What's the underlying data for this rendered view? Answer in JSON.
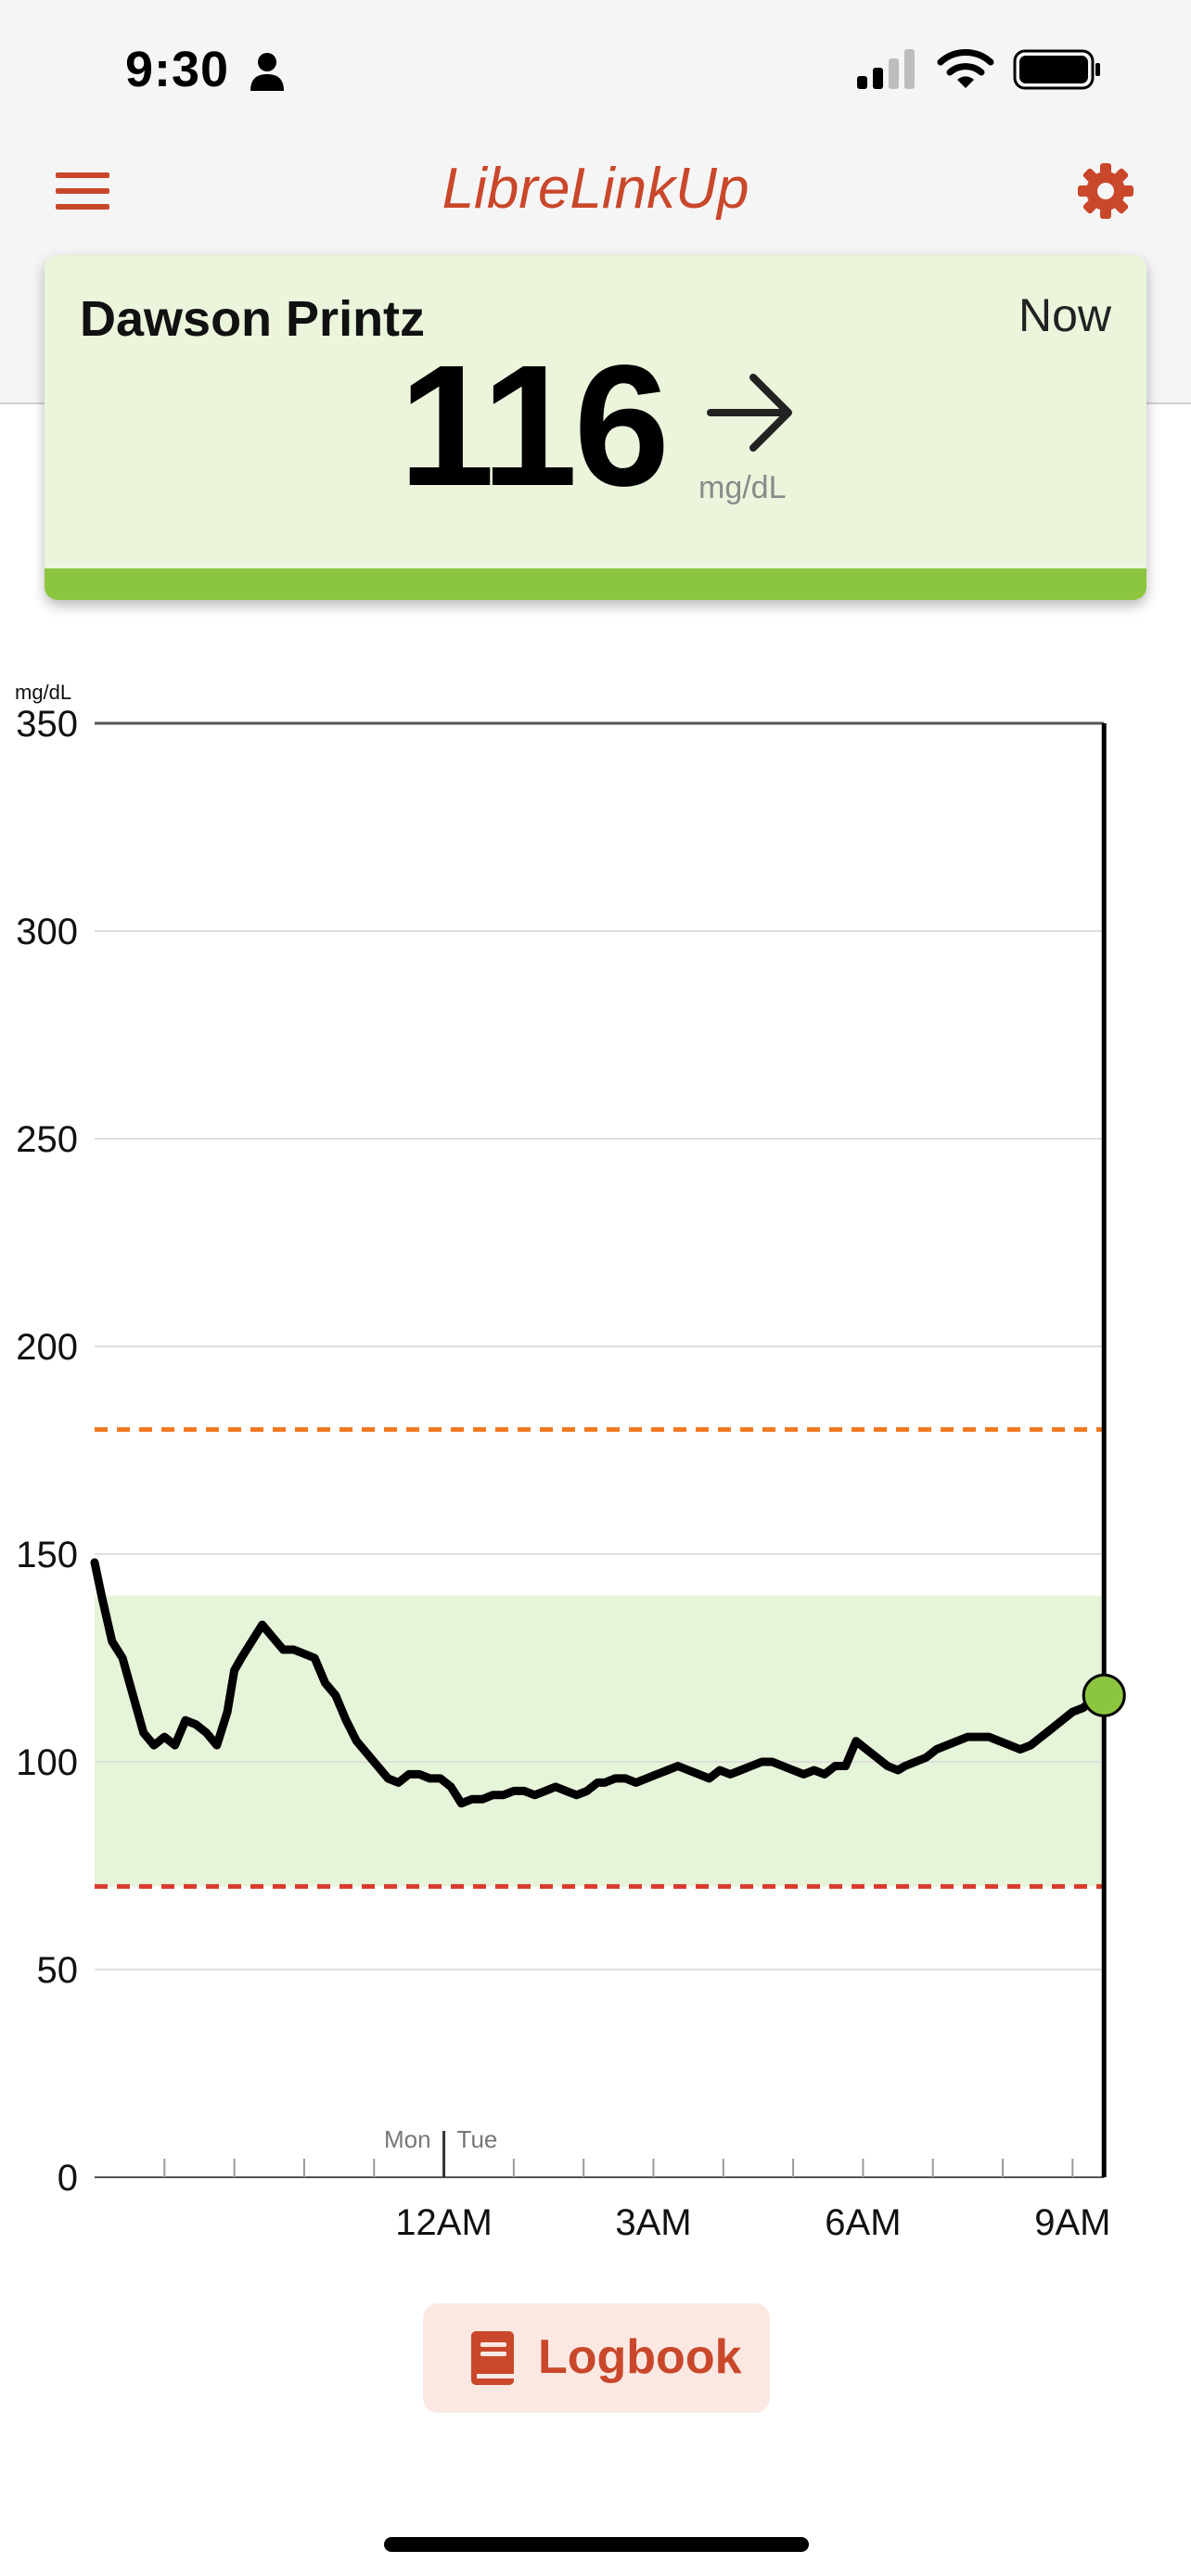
{
  "status_bar": {
    "time": "9:30",
    "icons": [
      "person-icon",
      "cellular-signal-icon",
      "wifi-icon",
      "battery-icon"
    ]
  },
  "nav": {
    "title": "LibreLinkUp",
    "left_icon": "hamburger-menu-icon",
    "right_icon": "gear-icon"
  },
  "reading_card": {
    "patient_name": "Dawson Printz",
    "time_label": "Now",
    "value": "116",
    "unit": "mg/dL",
    "trend_icon": "arrow-right-icon",
    "status_color": "#8cc63f",
    "background_color": "#eaf5dc"
  },
  "chart_data": {
    "type": "line",
    "ylabel": "mg/dL",
    "ylim": [
      0,
      350
    ],
    "yticks": [
      0,
      50,
      100,
      150,
      200,
      250,
      300,
      350
    ],
    "xlim_hours": [
      -5,
      9.5
    ],
    "xticks": [
      {
        "hour": 0,
        "label": "12AM"
      },
      {
        "hour": 3,
        "label": "3AM"
      },
      {
        "hour": 6,
        "label": "6AM"
      },
      {
        "hour": 9,
        "label": "9AM"
      }
    ],
    "minor_tick_hours": [
      -4,
      -3,
      -2,
      -1,
      0,
      1,
      2,
      3,
      4,
      5,
      6,
      7,
      8,
      9
    ],
    "day_divider": {
      "hour": 0,
      "left_label": "Mon",
      "right_label": "Tue"
    },
    "target_range": {
      "low": 70,
      "high": 140,
      "color": "#e6f4d9"
    },
    "high_alarm": {
      "value": 180,
      "color": "#f07820"
    },
    "low_alarm": {
      "value": 70,
      "color": "#d93a2b"
    },
    "grid": true,
    "current_reading": {
      "hour": 9.45,
      "value": 116,
      "marker_color": "#8cc63f"
    },
    "series": [
      {
        "x": [
          -5.0,
          -4.9,
          -4.75,
          -4.6,
          -4.45,
          -4.3,
          -4.15,
          -4.0,
          -3.85,
          -3.7,
          -3.55,
          -3.4,
          -3.25,
          -3.1,
          -3.0,
          -2.9,
          -2.75,
          -2.6,
          -2.45,
          -2.3,
          -2.15,
          -2.0,
          -1.85,
          -1.7,
          -1.55,
          -1.4,
          -1.25,
          -1.1,
          -0.95,
          -0.8,
          -0.65,
          -0.5,
          -0.35,
          -0.2,
          -0.05,
          0.1,
          0.25,
          0.4,
          0.55,
          0.7,
          0.85,
          1.0,
          1.15,
          1.3,
          1.45,
          1.6,
          1.75,
          1.9,
          2.05,
          2.2,
          2.3,
          2.45,
          2.6,
          2.75,
          2.9,
          3.05,
          3.2,
          3.35,
          3.5,
          3.65,
          3.8,
          3.95,
          4.1,
          4.25,
          4.4,
          4.55,
          4.7,
          4.85,
          5.0,
          5.15,
          5.3,
          5.45,
          5.6,
          5.75,
          5.9,
          6.05,
          6.2,
          6.35,
          6.5,
          6.6,
          6.75,
          6.9,
          7.05,
          7.2,
          7.35,
          7.5,
          7.65,
          7.8,
          7.95,
          8.1,
          8.25,
          8.4,
          8.55,
          8.7,
          8.85,
          9.0,
          9.15,
          9.3,
          9.45
        ],
        "values": [
          148,
          140,
          129,
          125,
          116,
          107,
          104,
          106,
          104,
          110,
          109,
          107,
          104,
          112,
          122,
          125,
          129,
          133,
          130,
          127,
          127,
          126,
          125,
          119,
          116,
          110,
          105,
          102,
          99,
          96,
          95,
          97,
          97,
          96,
          96,
          94,
          90,
          91,
          91,
          92,
          92,
          93,
          93,
          92,
          93,
          94,
          93,
          92,
          93,
          95,
          95,
          96,
          96,
          95,
          96,
          97,
          98,
          99,
          98,
          97,
          96,
          98,
          97,
          98,
          99,
          100,
          100,
          99,
          98,
          97,
          98,
          97,
          99,
          99,
          105,
          103,
          101,
          99,
          98,
          99,
          100,
          101,
          103,
          104,
          105,
          106,
          106,
          106,
          105,
          104,
          103,
          104,
          106,
          108,
          110,
          112,
          113,
          115,
          116
        ]
      }
    ]
  },
  "logbook": {
    "label": "Logbook",
    "icon": "book-icon"
  }
}
